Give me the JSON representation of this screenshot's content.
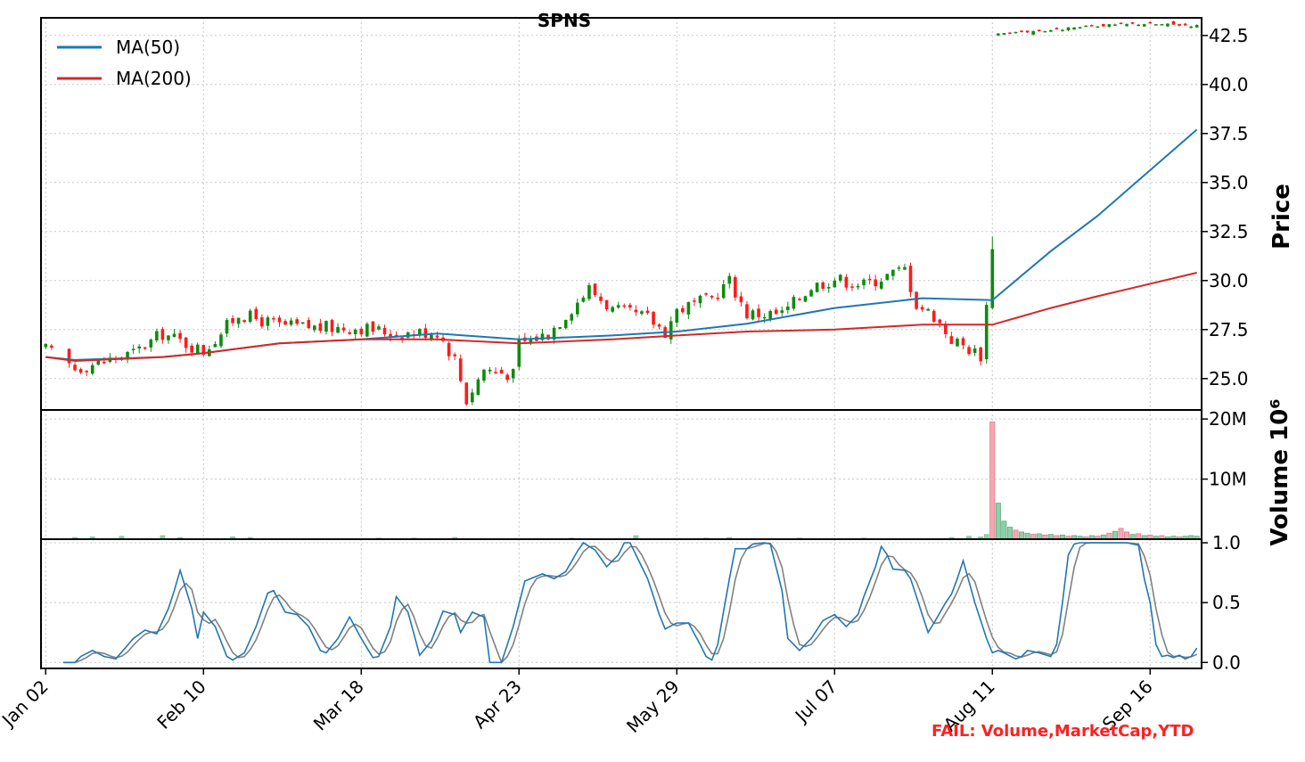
{
  "chart_data": {
    "type": "candlestick",
    "title": "SPNS",
    "x_tick_labels": [
      "Jan 02",
      "Feb 10",
      "Mar 18",
      "Apr 23",
      "May 29",
      "Jul 07",
      "Aug 11",
      "Sep 16"
    ],
    "x_tick_index": [
      0,
      27,
      54,
      81,
      108,
      135,
      162,
      189
    ],
    "n_bars": 198,
    "price_panel": {
      "ylabel": "Price",
      "ylim": [
        23.4,
        43.4
      ],
      "yticks": [
        "25.0",
        "27.5",
        "30.0",
        "32.5",
        "35.0",
        "37.5",
        "40.0",
        "42.5"
      ],
      "ytick_values": [
        25.0,
        27.5,
        30.0,
        32.5,
        35.0,
        37.5,
        40.0,
        42.5
      ],
      "anchors": [
        [
          0,
          26.5
        ],
        [
          5,
          25.5
        ],
        [
          10,
          25.9
        ],
        [
          15,
          26.3
        ],
        [
          20,
          27.3
        ],
        [
          27,
          26.4
        ],
        [
          33,
          28.3
        ],
        [
          40,
          27.7
        ],
        [
          47,
          27.6
        ],
        [
          54,
          27.6
        ],
        [
          60,
          27.3
        ],
        [
          67,
          27.4
        ],
        [
          70,
          26.0
        ],
        [
          72,
          23.9
        ],
        [
          75,
          25.5
        ],
        [
          80,
          25.2
        ],
        [
          81,
          26.8
        ],
        [
          86,
          27.3
        ],
        [
          90,
          28.6
        ],
        [
          93,
          29.6
        ],
        [
          97,
          28.5
        ],
        [
          103,
          28.1
        ],
        [
          106,
          27.4
        ],
        [
          108,
          28.5
        ],
        [
          114,
          29.1
        ],
        [
          117,
          30.0
        ],
        [
          120,
          28.3
        ],
        [
          126,
          28.3
        ],
        [
          131,
          29.7
        ],
        [
          135,
          30.1
        ],
        [
          140,
          29.8
        ],
        [
          147,
          30.6
        ],
        [
          149,
          28.8
        ],
        [
          152,
          28.2
        ],
        [
          155,
          27.0
        ],
        [
          160,
          26.2
        ],
        [
          161,
          28.7
        ],
        [
          162,
          30.2
        ],
        [
          163,
          42.6
        ],
        [
          168,
          42.7
        ],
        [
          173,
          42.8
        ],
        [
          180,
          43.0
        ],
        [
          188,
          43.1
        ],
        [
          197,
          43.0
        ]
      ],
      "ma_series": [
        {
          "name": "MA(50)",
          "color": "#1f77b4",
          "points": [
            [
              0,
              26.1
            ],
            [
              5,
              25.95
            ],
            [
              20,
              26.1
            ],
            [
              27,
              26.3
            ],
            [
              40,
              26.8
            ],
            [
              54,
              27.0
            ],
            [
              67,
              27.3
            ],
            [
              81,
              27.0
            ],
            [
              97,
              27.2
            ],
            [
              108,
              27.4
            ],
            [
              120,
              27.8
            ],
            [
              135,
              28.6
            ],
            [
              150,
              29.1
            ],
            [
              162,
              29.0
            ],
            [
              172,
              31.5
            ],
            [
              180,
              33.3
            ],
            [
              197,
              37.7
            ]
          ]
        },
        {
          "name": "MA(200)",
          "color": "#d62728",
          "points": [
            [
              0,
              26.1
            ],
            [
              5,
              25.9
            ],
            [
              20,
              26.1
            ],
            [
              27,
              26.3
            ],
            [
              40,
              26.8
            ],
            [
              54,
              27.0
            ],
            [
              67,
              27.0
            ],
            [
              81,
              26.8
            ],
            [
              97,
              27.0
            ],
            [
              108,
              27.2
            ],
            [
              120,
              27.4
            ],
            [
              135,
              27.5
            ],
            [
              150,
              27.75
            ],
            [
              162,
              27.75
            ],
            [
              172,
              28.6
            ],
            [
              180,
              29.2
            ],
            [
              197,
              30.4
            ]
          ]
        }
      ],
      "legend_placement": "upper-left"
    },
    "volume_panel": {
      "ylabel": "Volume  10^6",
      "ylim": [
        0,
        21.5
      ],
      "yticks": [
        "10M",
        "20M"
      ],
      "ytick_values": [
        10,
        20
      ],
      "small_bars": [
        [
          5,
          0.3
        ],
        [
          8,
          0.4
        ],
        [
          13,
          0.5
        ],
        [
          20,
          0.6
        ],
        [
          23,
          0.3
        ],
        [
          32,
          0.4
        ],
        [
          35,
          0.3
        ],
        [
          57,
          0.2
        ],
        [
          63,
          0.2
        ],
        [
          70,
          0.3
        ],
        [
          90,
          0.2
        ],
        [
          101,
          0.6
        ],
        [
          113,
          0.2
        ],
        [
          117,
          0.3
        ],
        [
          129,
          0.2
        ],
        [
          140,
          0.2
        ],
        [
          155,
          0.3
        ],
        [
          158,
          0.5
        ],
        [
          160,
          0.4
        ],
        [
          161,
          0.8
        ]
      ],
      "spike_bars": [
        [
          162,
          19.5,
          "down"
        ],
        [
          163,
          6.0,
          "up"
        ],
        [
          164,
          3.0,
          "up"
        ],
        [
          165,
          2.0,
          "up"
        ],
        [
          166,
          1.5,
          "down"
        ],
        [
          167,
          1.2,
          "up"
        ],
        [
          168,
          1.0,
          "up"
        ],
        [
          169,
          0.8,
          "down"
        ],
        [
          170,
          0.9,
          "up"
        ],
        [
          171,
          0.7,
          "down"
        ],
        [
          172,
          0.8,
          "up"
        ],
        [
          173,
          0.6,
          "down"
        ],
        [
          174,
          0.7,
          "up"
        ],
        [
          175,
          0.5,
          "down"
        ],
        [
          176,
          0.6,
          "up"
        ],
        [
          177,
          0.5,
          "up"
        ],
        [
          178,
          0.4,
          "down"
        ],
        [
          179,
          0.6,
          "up"
        ],
        [
          180,
          0.5,
          "down"
        ],
        [
          181,
          0.7,
          "up"
        ],
        [
          182,
          1.0,
          "down"
        ],
        [
          183,
          1.3,
          "up"
        ],
        [
          184,
          1.8,
          "down"
        ],
        [
          185,
          1.2,
          "down"
        ],
        [
          186,
          0.8,
          "up"
        ],
        [
          187,
          0.9,
          "down"
        ],
        [
          188,
          0.6,
          "up"
        ],
        [
          189,
          0.7,
          "down"
        ],
        [
          190,
          0.5,
          "up"
        ],
        [
          191,
          0.6,
          "down"
        ],
        [
          192,
          0.4,
          "up"
        ],
        [
          193,
          0.5,
          "up"
        ],
        [
          194,
          0.4,
          "down"
        ],
        [
          195,
          0.5,
          "up"
        ],
        [
          196,
          0.6,
          "up"
        ],
        [
          197,
          0.5,
          "up"
        ]
      ]
    },
    "oscillator_panel": {
      "ylim": [
        -0.05,
        1.03
      ],
      "yticks": [
        "0.0",
        "0.5",
        "1.0"
      ],
      "ytick_values": [
        0.0,
        0.5,
        1.0
      ],
      "fast_color": "#1f77b4",
      "slow_color": "#808080",
      "fast_anchors": [
        [
          3,
          0.0
        ],
        [
          5,
          0.0
        ],
        [
          6,
          0.05
        ],
        [
          8,
          0.1
        ],
        [
          10,
          0.05
        ],
        [
          12,
          0.03
        ],
        [
          15,
          0.2
        ],
        [
          17,
          0.27
        ],
        [
          19,
          0.24
        ],
        [
          21,
          0.45
        ],
        [
          22,
          0.6
        ],
        [
          23,
          0.77
        ],
        [
          25,
          0.45
        ],
        [
          26,
          0.2
        ],
        [
          27,
          0.42
        ],
        [
          29,
          0.3
        ],
        [
          31,
          0.05
        ],
        [
          32,
          0.02
        ],
        [
          34,
          0.08
        ],
        [
          36,
          0.3
        ],
        [
          38,
          0.58
        ],
        [
          39,
          0.6
        ],
        [
          41,
          0.42
        ],
        [
          43,
          0.4
        ],
        [
          45,
          0.3
        ],
        [
          47,
          0.1
        ],
        [
          48,
          0.08
        ],
        [
          50,
          0.2
        ],
        [
          52,
          0.38
        ],
        [
          54,
          0.2
        ],
        [
          56,
          0.04
        ],
        [
          57,
          0.05
        ],
        [
          59,
          0.3
        ],
        [
          60,
          0.55
        ],
        [
          62,
          0.42
        ],
        [
          64,
          0.06
        ],
        [
          66,
          0.18
        ],
        [
          68,
          0.43
        ],
        [
          70,
          0.4
        ],
        [
          71,
          0.25
        ],
        [
          73,
          0.42
        ],
        [
          75,
          0.38
        ],
        [
          76,
          0.0
        ],
        [
          78,
          0.0
        ],
        [
          80,
          0.3
        ],
        [
          82,
          0.68
        ],
        [
          83,
          0.7
        ],
        [
          85,
          0.74
        ],
        [
          87,
          0.7
        ],
        [
          89,
          0.76
        ],
        [
          91,
          0.93
        ],
        [
          92,
          1.0
        ],
        [
          94,
          0.94
        ],
        [
          96,
          0.8
        ],
        [
          98,
          0.9
        ],
        [
          99,
          1.0
        ],
        [
          100,
          1.0
        ],
        [
          102,
          0.8
        ],
        [
          103,
          0.7
        ],
        [
          105,
          0.4
        ],
        [
          106,
          0.28
        ],
        [
          108,
          0.33
        ],
        [
          110,
          0.33
        ],
        [
          112,
          0.15
        ],
        [
          113,
          0.05
        ],
        [
          114,
          0.02
        ],
        [
          115,
          0.15
        ],
        [
          117,
          0.7
        ],
        [
          118,
          0.95
        ],
        [
          120,
          0.95
        ],
        [
          121,
          0.99
        ],
        [
          123,
          1.0
        ],
        [
          124,
          0.99
        ],
        [
          126,
          0.6
        ],
        [
          127,
          0.2
        ],
        [
          129,
          0.1
        ],
        [
          131,
          0.2
        ],
        [
          133,
          0.35
        ],
        [
          135,
          0.4
        ],
        [
          136,
          0.35
        ],
        [
          137,
          0.3
        ],
        [
          139,
          0.4
        ],
        [
          140,
          0.55
        ],
        [
          142,
          0.8
        ],
        [
          143,
          0.97
        ],
        [
          144,
          0.9
        ],
        [
          145,
          0.78
        ],
        [
          147,
          0.77
        ],
        [
          148,
          0.7
        ],
        [
          150,
          0.4
        ],
        [
          151,
          0.25
        ],
        [
          152,
          0.33
        ],
        [
          154,
          0.5
        ],
        [
          155,
          0.57
        ],
        [
          156,
          0.7
        ],
        [
          157,
          0.85
        ],
        [
          159,
          0.5
        ],
        [
          161,
          0.2
        ],
        [
          162,
          0.08
        ],
        [
          163,
          0.1
        ],
        [
          164,
          0.08
        ],
        [
          166,
          0.03
        ],
        [
          167,
          0.05
        ],
        [
          168,
          0.1
        ],
        [
          170,
          0.08
        ],
        [
          172,
          0.05
        ],
        [
          173,
          0.15
        ],
        [
          174,
          0.5
        ],
        [
          175,
          0.9
        ],
        [
          176,
          0.99
        ],
        [
          177,
          1.0
        ],
        [
          185,
          1.0
        ],
        [
          186,
          0.99
        ],
        [
          187,
          0.98
        ],
        [
          188,
          0.7
        ],
        [
          189,
          0.5
        ],
        [
          190,
          0.15
        ],
        [
          191,
          0.05
        ],
        [
          192,
          0.06
        ],
        [
          193,
          0.04
        ],
        [
          194,
          0.06
        ],
        [
          195,
          0.03
        ],
        [
          196,
          0.05
        ],
        [
          197,
          0.12
        ]
      ]
    },
    "annotation": "FAIL: Volume,MarketCap,YTD"
  }
}
